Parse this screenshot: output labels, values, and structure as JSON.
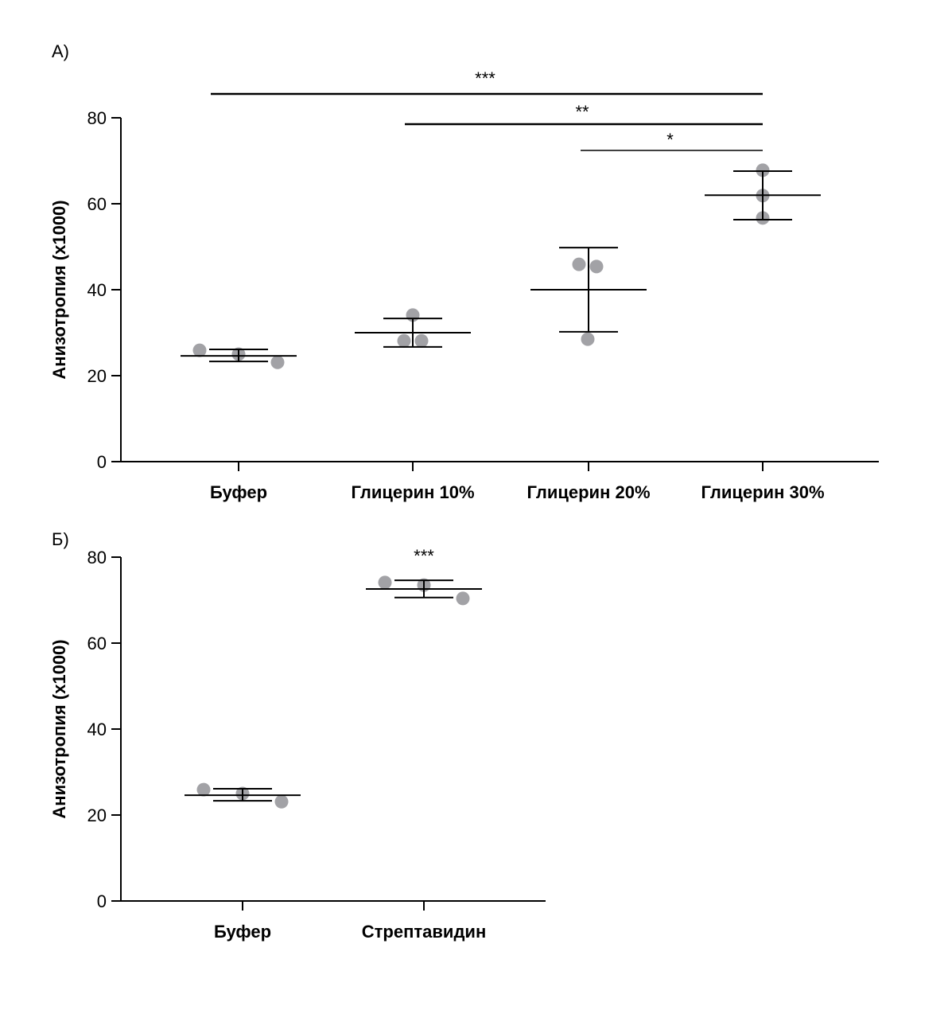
{
  "chart_data": [
    {
      "type": "scatter",
      "panel_label": "А)",
      "ylabel": "Анизотропия (x1000)",
      "ylim": [
        0,
        80
      ],
      "yticks": [
        0,
        20,
        40,
        60,
        80
      ],
      "categories": [
        "Буфер",
        "Глицерин 10%",
        "Глицерин 20%",
        "Глицерин 30%"
      ],
      "points": [
        [
          25.9,
          25.0,
          23.1
        ],
        [
          34.1,
          28.1,
          28.1
        ],
        [
          45.9,
          45.4,
          28.5
        ],
        [
          67.8,
          61.9,
          56.7
        ]
      ],
      "mean": [
        24.6,
        30.0,
        40.0,
        62.0
      ],
      "sd_upper": [
        26.1,
        33.3,
        49.8,
        67.6
      ],
      "sd_lower": [
        23.3,
        26.7,
        30.2,
        56.3
      ],
      "significance": [
        {
          "from": 0,
          "to": 3,
          "label": "***"
        },
        {
          "from": 1,
          "to": 3,
          "label": "**"
        },
        {
          "from": 2,
          "to": 3,
          "label": "*"
        }
      ]
    },
    {
      "type": "scatter",
      "panel_label": "Б)",
      "ylabel": "Анизотропия (x1000)",
      "ylim": [
        0,
        80
      ],
      "yticks": [
        0,
        20,
        40,
        60,
        80
      ],
      "categories": [
        "Буфер",
        "Стрептавидин"
      ],
      "points": [
        [
          25.9,
          25.0,
          23.1
        ],
        [
          74.1,
          73.5,
          70.4
        ]
      ],
      "mean": [
        24.6,
        72.6
      ],
      "sd_upper": [
        26.1,
        74.6
      ],
      "sd_lower": [
        23.3,
        70.6
      ],
      "annotations": [
        {
          "category": 1,
          "label": "***"
        }
      ]
    }
  ],
  "colors": {
    "point": "#a2a2a6",
    "line": "#000000"
  }
}
